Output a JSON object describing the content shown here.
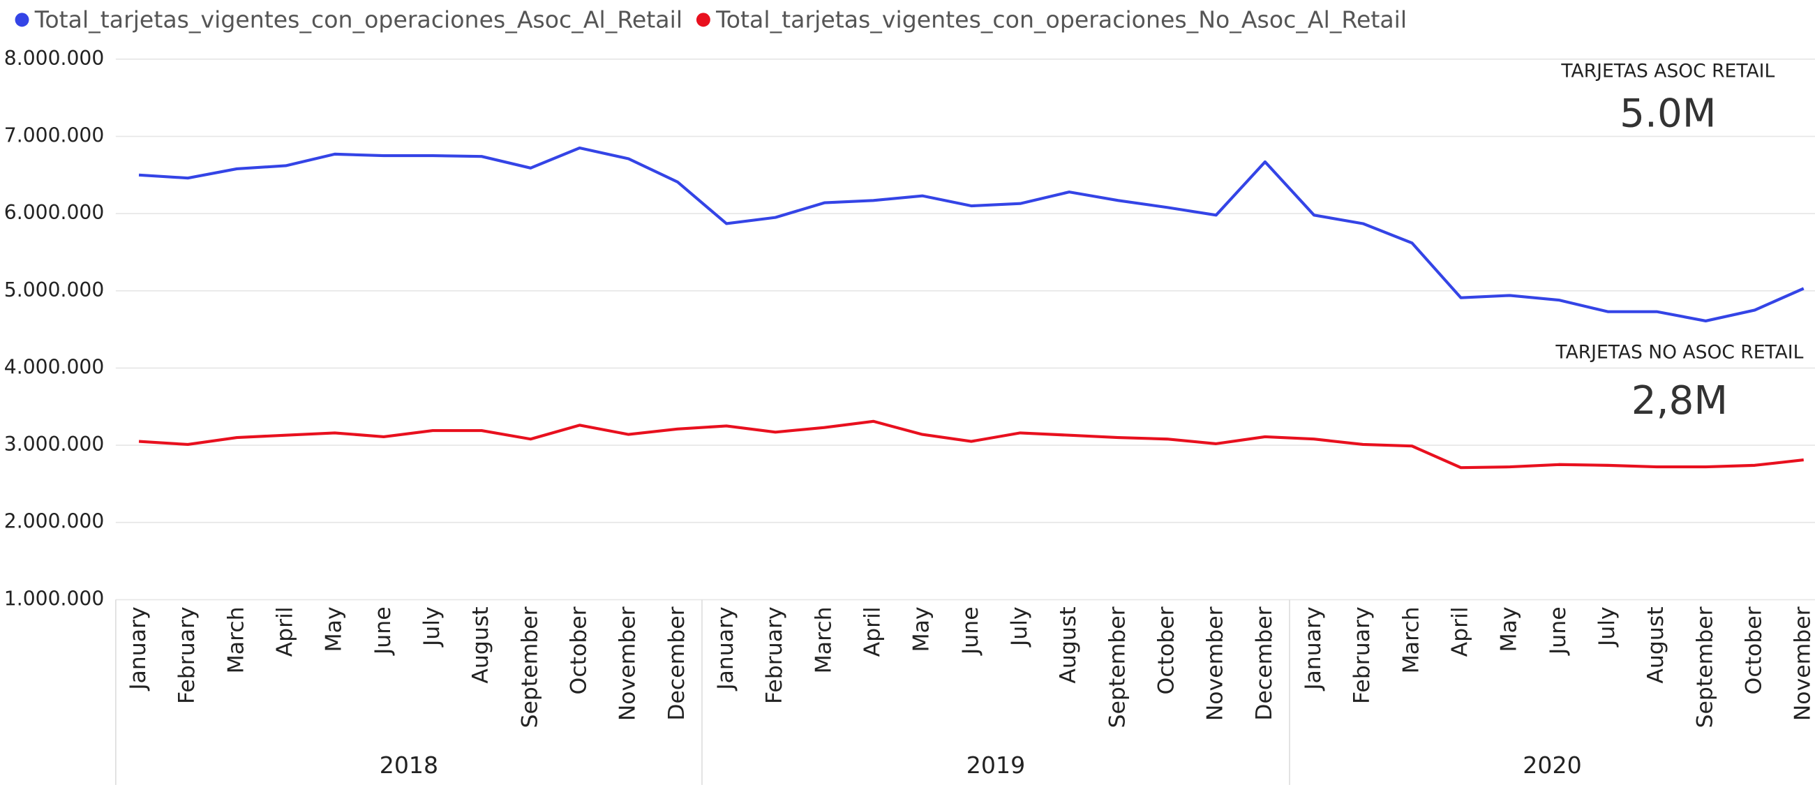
{
  "chart_data": {
    "type": "line",
    "categories": [
      "January",
      "February",
      "March",
      "April",
      "May",
      "June",
      "July",
      "August",
      "September",
      "October",
      "November",
      "December",
      "January",
      "February",
      "March",
      "April",
      "May",
      "June",
      "July",
      "August",
      "September",
      "October",
      "November",
      "December",
      "January",
      "February",
      "March",
      "April",
      "May",
      "June",
      "July",
      "August",
      "September",
      "October",
      "November"
    ],
    "year_groups": [
      "2018",
      "2019",
      "2020"
    ],
    "series": [
      {
        "name": "Total_tarjetas_vigentes_con_operaciones_Asoc_Al_Retail",
        "color": "#3444e6",
        "values": [
          6500000,
          6460000,
          6580000,
          6620000,
          6770000,
          6750000,
          6750000,
          6740000,
          6590000,
          6850000,
          6710000,
          6410000,
          5870000,
          5950000,
          6140000,
          6170000,
          6230000,
          6100000,
          6130000,
          6280000,
          6170000,
          6080000,
          5980000,
          6670000,
          5980000,
          5870000,
          5620000,
          4910000,
          4940000,
          4880000,
          4730000,
          4730000,
          4610000,
          4750000,
          5030000
        ]
      },
      {
        "name": "Total_tarjetas_vigentes_con_operaciones_No_Asoc_Al_Retail",
        "color": "#e8101e",
        "values": [
          3050000,
          3010000,
          3100000,
          3130000,
          3160000,
          3110000,
          3190000,
          3190000,
          3080000,
          3260000,
          3140000,
          3210000,
          3250000,
          3170000,
          3230000,
          3310000,
          3140000,
          3050000,
          3160000,
          3130000,
          3100000,
          3080000,
          3020000,
          3110000,
          3080000,
          3010000,
          2990000,
          2710000,
          2720000,
          2750000,
          2740000,
          2720000,
          2720000,
          2740000,
          2810000
        ]
      }
    ],
    "ylim": [
      1000000,
      8000000
    ],
    "yticks": [
      {
        "value": 1000000,
        "label": "1.000.000"
      },
      {
        "value": 2000000,
        "label": "2.000.000"
      },
      {
        "value": 3000000,
        "label": "3.000.000"
      },
      {
        "value": 4000000,
        "label": "4.000.000"
      },
      {
        "value": 5000000,
        "label": "5.000.000"
      },
      {
        "value": 6000000,
        "label": "6.000.000"
      },
      {
        "value": 7000000,
        "label": "7.000.000"
      },
      {
        "value": 8000000,
        "label": "8.000.000"
      }
    ],
    "grid": true,
    "cards": [
      {
        "title": "TARJETAS ASOC RETAIL",
        "value": "5.0M"
      },
      {
        "title": "TARJETAS NO ASOC RETAIL",
        "value": "2,8M"
      }
    ]
  }
}
